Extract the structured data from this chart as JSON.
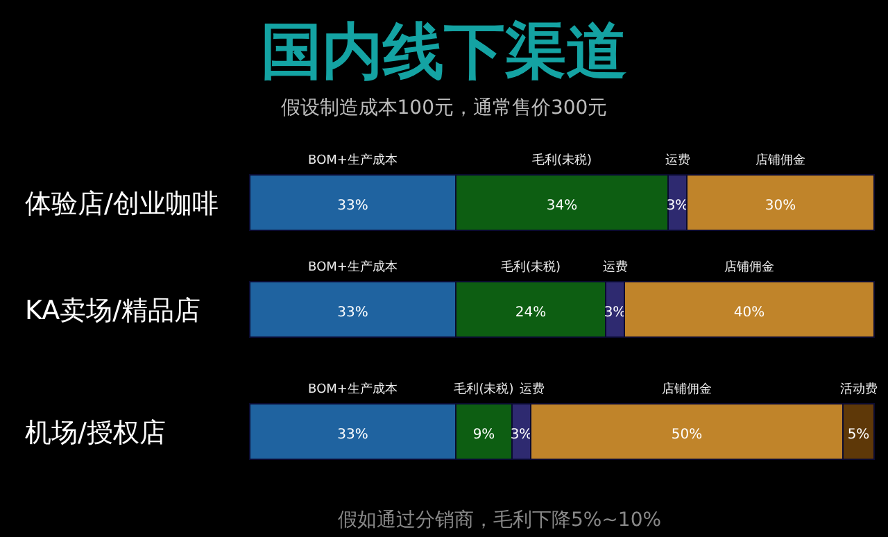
{
  "chart_data": {
    "type": "bar",
    "orientation": "horizontal",
    "stacked": true,
    "title": "国内线下渠道",
    "subtitle": "假设制造成本100元，通常售价300元",
    "categories": [
      "体验店/创业咖啡",
      "KA卖场/精品店",
      "机场/授权店"
    ],
    "series": [
      {
        "name": "BOM+生产成本",
        "color": "#1f63a0",
        "values": [
          33,
          33,
          33
        ],
        "value_labels": [
          "33%",
          "33%",
          "33%"
        ]
      },
      {
        "name": "毛利(未税)",
        "color": "#0d5e12",
        "values": [
          34,
          24,
          9
        ],
        "value_labels": [
          "34%",
          "24%",
          "9%"
        ]
      },
      {
        "name": "运费",
        "color": "#2e2a70",
        "values": [
          3,
          3,
          3
        ],
        "value_labels": [
          "3%",
          "3%",
          "3%"
        ]
      },
      {
        "name": "店铺佣金",
        "color": "#c0842a",
        "values": [
          30,
          40,
          50
        ],
        "value_labels": [
          "30%",
          "40%",
          "50%"
        ]
      },
      {
        "name": "活动费",
        "color": "#5e3808",
        "values": [
          null,
          null,
          5
        ],
        "value_labels": [
          null,
          null,
          "5%"
        ]
      }
    ],
    "annotations": [
      "假如通过分销商，毛利下降5%~10%"
    ]
  }
}
